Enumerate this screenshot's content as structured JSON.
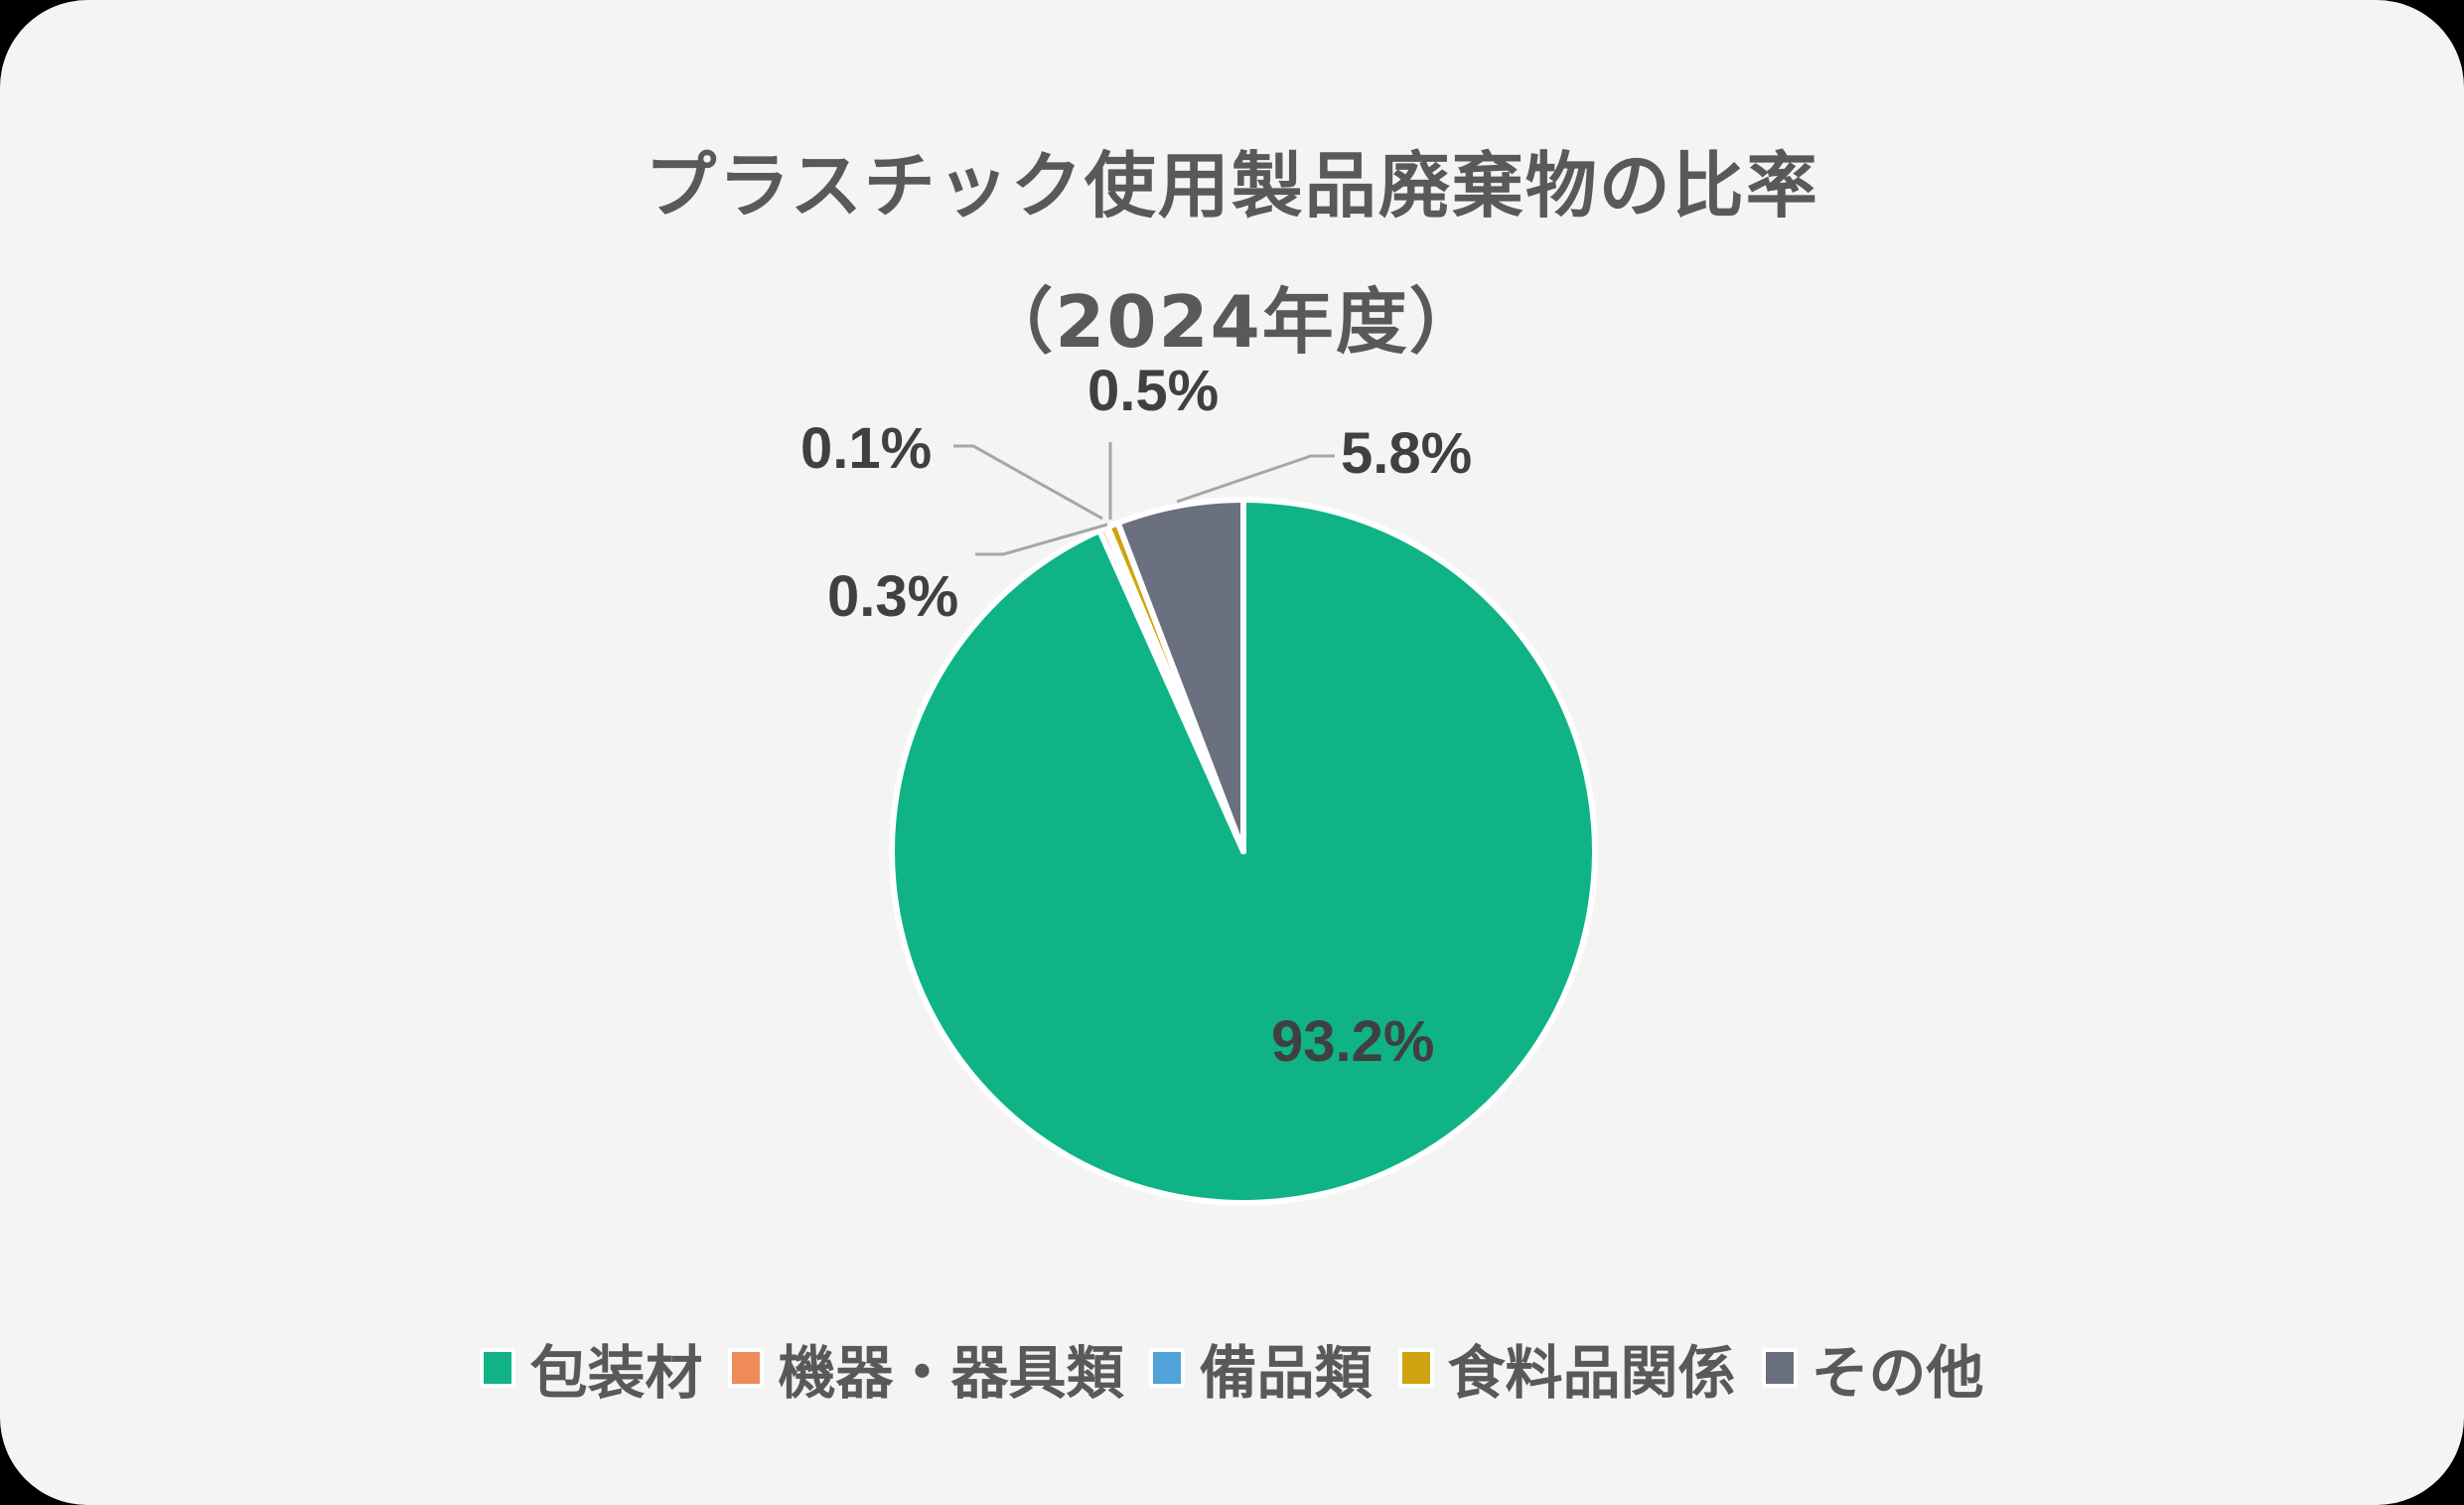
{
  "chart_data": {
    "type": "pie",
    "title": "プラスチック使用製品廃棄物の比率",
    "subtitle": "（2024年度）",
    "categories": [
      "包装材",
      "機器・器具類",
      "備品類",
      "食料品関係",
      "その他"
    ],
    "values": [
      93.2,
      0.3,
      0.1,
      0.5,
      5.8
    ],
    "labels": [
      "93.2%",
      "0.3%",
      "0.1%",
      "0.5%",
      "5.8%"
    ],
    "colors": [
      "#0fb386",
      "#ef8a5b",
      "#4fa3d9",
      "#cfa30f",
      "#6b7080"
    ],
    "start_angle": "12 o'clock",
    "direction": "clockwise",
    "legend_position": "bottom",
    "data_labels": true
  },
  "title": {
    "line1": "プラスチック使用製品廃棄物の比率",
    "line2": "（2024年度）"
  },
  "legend": [
    {
      "label": "包装材",
      "color": "#0fb386"
    },
    {
      "label": "機器・器具類",
      "color": "#ef8a5b"
    },
    {
      "label": "備品類",
      "color": "#4fa3d9"
    },
    {
      "label": "食料品関係",
      "color": "#cfa30f"
    },
    {
      "label": "その他",
      "color": "#6b7080"
    }
  ]
}
